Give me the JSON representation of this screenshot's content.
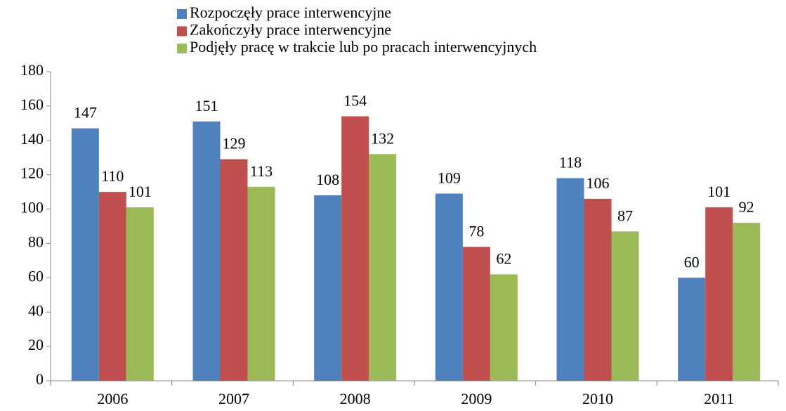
{
  "chart_data": {
    "type": "bar",
    "categories": [
      "2006",
      "2007",
      "2008",
      "2009",
      "2010",
      "2011"
    ],
    "series": [
      {
        "name": "Rozpoczęły prace interwencyjne",
        "color": "#4f81bd",
        "values": [
          147,
          151,
          108,
          109,
          118,
          60
        ]
      },
      {
        "name": "Zakończyły prace interwencyjne",
        "color": "#c0504d",
        "values": [
          110,
          129,
          154,
          78,
          106,
          101
        ]
      },
      {
        "name": "Podjęły pracę w trakcie lub po pracach interwencyjnych",
        "color": "#9bbb59",
        "values": [
          101,
          113,
          132,
          62,
          87,
          92
        ]
      }
    ],
    "ylim": [
      0,
      180
    ],
    "yticks": [
      0,
      20,
      40,
      60,
      80,
      100,
      120,
      140,
      160,
      180
    ],
    "grid": false,
    "legend": "top"
  }
}
